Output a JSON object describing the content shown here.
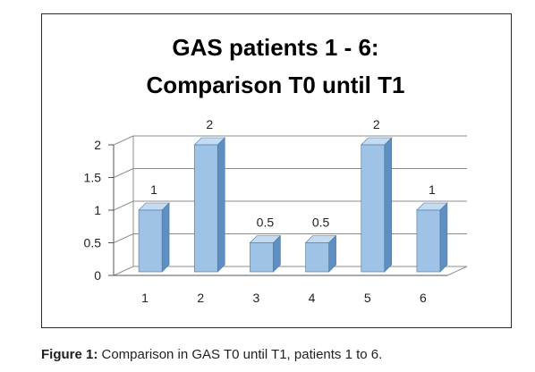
{
  "chart_data": {
    "type": "bar",
    "title_lines": [
      "GAS patients 1 - 6:",
      "Comparison T0 until T1"
    ],
    "categories": [
      "1",
      "2",
      "3",
      "4",
      "5",
      "6"
    ],
    "values": [
      1,
      2,
      0.5,
      0.5,
      2,
      1
    ],
    "data_labels": [
      "1",
      "2",
      "0.5",
      "0.5",
      "2",
      "1"
    ],
    "y_ticks": [
      0,
      0.5,
      1,
      1.5,
      2
    ],
    "y_tick_labels": [
      "0",
      "0.5",
      "1",
      "1.5",
      "2"
    ],
    "ylim": [
      0,
      2
    ],
    "grid": true,
    "style": "3d-column",
    "bar_color": "#9ec3e6",
    "bar_side_color": "#5f8fc0",
    "bar_top_color": "#c5dbf0"
  },
  "caption": {
    "label": "Figure 1:",
    "text": " Comparison in GAS T0 until T1, patients 1 to 6."
  }
}
